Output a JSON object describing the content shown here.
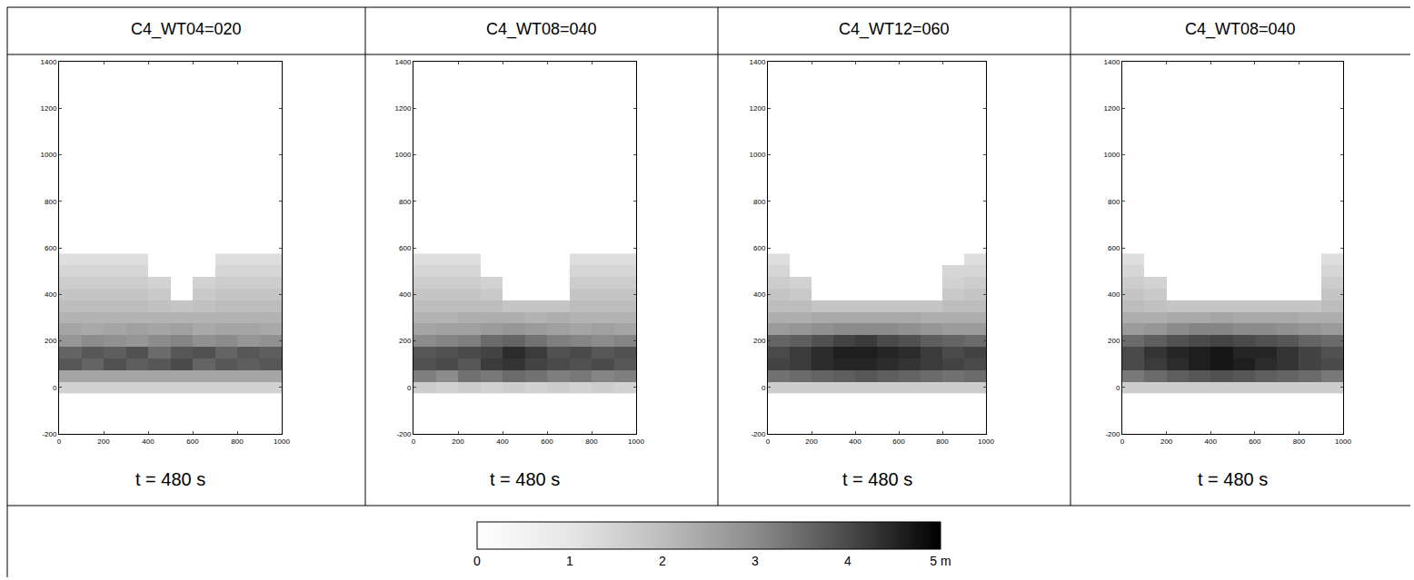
{
  "chart_data": [
    {
      "type": "heatmap",
      "title": "C4_WT04=020",
      "annotations": [
        "t = 480 s"
      ],
      "x": [
        50,
        150,
        250,
        350,
        450,
        550,
        650,
        750,
        850,
        950
      ],
      "y": [
        0,
        50,
        100,
        150,
        200,
        250,
        300,
        350,
        400,
        450,
        500,
        550
      ],
      "z": [
        [
          1.5,
          1.5,
          1.5,
          1.5,
          1.5,
          1.5,
          1.5,
          1.5,
          1.5,
          1.5
        ],
        [
          2.5,
          2.5,
          2.5,
          2.5,
          2.5,
          2.5,
          2.5,
          2.5,
          2.5,
          2.5
        ],
        [
          3.8,
          3.6,
          3.9,
          3.7,
          3.8,
          4.0,
          3.6,
          3.8,
          3.7,
          3.8
        ],
        [
          3.6,
          3.8,
          3.7,
          3.9,
          3.5,
          3.8,
          3.9,
          3.6,
          3.8,
          3.7
        ],
        [
          2.8,
          3.0,
          2.9,
          2.8,
          3.0,
          3.1,
          2.9,
          3.0,
          2.8,
          2.9
        ],
        [
          2.5,
          2.4,
          2.5,
          2.6,
          2.5,
          2.6,
          2.4,
          2.5,
          2.5,
          2.4
        ],
        [
          2.2,
          2.2,
          2.2,
          2.2,
          2.2,
          2.2,
          2.2,
          2.2,
          2.2,
          2.2
        ],
        [
          2.0,
          2.0,
          2.0,
          2.0,
          1.9,
          1.8,
          1.9,
          2.0,
          2.0,
          2.0
        ],
        [
          1.8,
          1.8,
          1.8,
          1.8,
          1.7,
          0,
          1.7,
          1.8,
          1.8,
          1.8
        ],
        [
          1.6,
          1.6,
          1.6,
          1.6,
          1.5,
          0,
          1.5,
          1.6,
          1.6,
          1.6
        ],
        [
          1.4,
          1.4,
          1.4,
          1.4,
          0,
          0,
          0,
          1.4,
          1.4,
          1.4
        ],
        [
          1.2,
          1.2,
          1.2,
          1.2,
          0,
          0,
          0,
          1.2,
          1.2,
          1.2
        ]
      ],
      "xlim": [
        0,
        1000
      ],
      "xticks": [
        0,
        200,
        400,
        600,
        800,
        1000
      ],
      "ylim": [
        -200,
        1400
      ],
      "yticks": [
        -200,
        0,
        200,
        400,
        600,
        800,
        1000,
        1200,
        1400
      ]
    },
    {
      "type": "heatmap",
      "title": "C4_WT08=040",
      "annotations": [
        "t = 480 s"
      ],
      "x": [
        50,
        150,
        250,
        350,
        450,
        550,
        650,
        750,
        850,
        950
      ],
      "y": [
        0,
        50,
        100,
        150,
        200,
        250,
        300,
        350,
        400,
        450,
        500,
        550
      ],
      "z": [
        [
          1.6,
          1.5,
          1.6,
          1.5,
          1.6,
          1.5,
          1.6,
          1.5,
          1.6,
          1.5
        ],
        [
          3.2,
          3.0,
          3.4,
          3.3,
          3.5,
          3.4,
          3.2,
          3.3,
          3.1,
          3.2
        ],
        [
          3.9,
          4.0,
          3.8,
          4.2,
          4.3,
          4.1,
          4.0,
          3.9,
          4.0,
          3.8
        ],
        [
          3.8,
          3.9,
          4.0,
          4.1,
          4.4,
          4.2,
          3.9,
          4.0,
          3.8,
          3.9
        ],
        [
          3.0,
          3.1,
          3.2,
          3.5,
          3.6,
          3.4,
          3.2,
          3.1,
          3.0,
          3.1
        ],
        [
          2.5,
          2.6,
          2.6,
          2.7,
          2.8,
          2.7,
          2.6,
          2.5,
          2.6,
          2.5
        ],
        [
          2.2,
          2.2,
          2.3,
          2.3,
          2.3,
          2.2,
          2.3,
          2.2,
          2.2,
          2.2
        ],
        [
          2.0,
          2.0,
          2.0,
          2.0,
          1.8,
          1.8,
          1.8,
          2.0,
          2.0,
          2.0
        ],
        [
          1.8,
          1.8,
          1.8,
          1.7,
          0,
          0,
          0,
          1.8,
          1.8,
          1.8
        ],
        [
          1.6,
          1.6,
          1.6,
          1.5,
          0,
          0,
          0,
          1.6,
          1.6,
          1.6
        ],
        [
          1.4,
          1.4,
          1.4,
          0,
          0,
          0,
          0,
          1.4,
          1.4,
          1.4
        ],
        [
          1.2,
          1.2,
          1.2,
          0,
          0,
          0,
          0,
          1.2,
          1.2,
          1.2
        ]
      ],
      "xlim": [
        0,
        1000
      ],
      "xticks": [
        0,
        200,
        400,
        600,
        800,
        1000
      ],
      "ylim": [
        -200,
        1400
      ],
      "yticks": [
        -200,
        0,
        200,
        400,
        600,
        800,
        1000,
        1200,
        1400
      ]
    },
    {
      "type": "heatmap",
      "title": "C4_WT12=060",
      "annotations": [
        "t = 480 s"
      ],
      "x": [
        50,
        150,
        250,
        350,
        450,
        550,
        650,
        750,
        850,
        950
      ],
      "y": [
        0,
        50,
        100,
        150,
        200,
        250,
        300,
        350,
        400,
        450,
        500,
        550
      ],
      "z": [
        [
          1.6,
          1.6,
          1.6,
          1.6,
          1.6,
          1.6,
          1.6,
          1.6,
          1.6,
          1.6
        ],
        [
          3.4,
          3.5,
          3.6,
          3.7,
          3.8,
          3.7,
          3.6,
          3.5,
          3.4,
          3.5
        ],
        [
          4.1,
          4.2,
          4.4,
          4.5,
          4.5,
          4.4,
          4.3,
          4.2,
          4.1,
          4.0
        ],
        [
          4.0,
          4.2,
          4.4,
          4.6,
          4.6,
          4.5,
          4.4,
          4.2,
          4.0,
          4.1
        ],
        [
          3.6,
          3.7,
          3.9,
          4.1,
          4.2,
          4.0,
          3.9,
          3.7,
          3.6,
          3.5
        ],
        [
          2.7,
          2.8,
          2.9,
          3.0,
          3.0,
          3.0,
          2.9,
          2.8,
          2.7,
          2.7
        ],
        [
          2.3,
          2.3,
          2.4,
          2.4,
          2.4,
          2.4,
          2.4,
          2.3,
          2.3,
          2.3
        ],
        [
          2.0,
          2.0,
          1.8,
          1.8,
          1.8,
          1.8,
          1.8,
          1.8,
          2.0,
          2.0
        ],
        [
          1.8,
          1.7,
          0,
          0,
          0,
          0,
          0,
          0,
          1.7,
          1.8
        ],
        [
          1.6,
          1.5,
          0,
          0,
          0,
          0,
          0,
          0,
          1.5,
          1.6
        ],
        [
          1.4,
          0,
          0,
          0,
          0,
          0,
          0,
          0,
          1.4,
          1.4
        ],
        [
          1.2,
          0,
          0,
          0,
          0,
          0,
          0,
          0,
          0,
          1.2
        ]
      ],
      "xlim": [
        0,
        1000
      ],
      "xticks": [
        0,
        200,
        400,
        600,
        800,
        1000
      ],
      "ylim": [
        -200,
        1400
      ],
      "yticks": [
        -200,
        0,
        200,
        400,
        600,
        800,
        1000,
        1200,
        1400
      ]
    },
    {
      "type": "heatmap",
      "title": "C4_WT08=040",
      "annotations": [
        "t = 480 s"
      ],
      "x": [
        50,
        150,
        250,
        350,
        450,
        550,
        650,
        750,
        850,
        950
      ],
      "y": [
        0,
        50,
        100,
        150,
        200,
        250,
        300,
        350,
        400,
        450,
        500,
        550
      ],
      "z": [
        [
          1.6,
          1.6,
          1.6,
          1.6,
          1.6,
          1.6,
          1.6,
          1.6,
          1.6,
          1.6
        ],
        [
          3.3,
          3.5,
          3.7,
          3.8,
          3.9,
          3.8,
          3.7,
          3.6,
          3.5,
          3.3
        ],
        [
          4.0,
          4.2,
          4.4,
          4.6,
          4.7,
          4.6,
          4.4,
          4.3,
          4.1,
          4.0
        ],
        [
          4.0,
          4.3,
          4.5,
          4.6,
          4.7,
          4.5,
          4.5,
          4.3,
          4.1,
          3.9
        ],
        [
          3.5,
          3.7,
          3.9,
          4.0,
          4.1,
          4.0,
          3.9,
          3.8,
          3.6,
          3.5
        ],
        [
          2.7,
          2.8,
          3.0,
          3.1,
          3.1,
          3.0,
          3.0,
          2.9,
          2.8,
          2.7
        ],
        [
          2.3,
          2.3,
          2.4,
          2.4,
          2.5,
          2.4,
          2.4,
          2.4,
          2.3,
          2.3
        ],
        [
          2.0,
          1.9,
          1.8,
          1.8,
          1.8,
          1.8,
          1.8,
          1.8,
          1.8,
          2.0
        ],
        [
          1.8,
          1.7,
          0,
          0,
          0,
          0,
          0,
          0,
          0,
          1.8
        ],
        [
          1.6,
          1.5,
          0,
          0,
          0,
          0,
          0,
          0,
          0,
          1.6
        ],
        [
          1.4,
          0,
          0,
          0,
          0,
          0,
          0,
          0,
          0,
          1.4
        ],
        [
          1.2,
          0,
          0,
          0,
          0,
          0,
          0,
          0,
          0,
          1.2
        ]
      ],
      "xlim": [
        0,
        1000
      ],
      "xticks": [
        0,
        200,
        400,
        600,
        800,
        1000
      ],
      "ylim": [
        -200,
        1400
      ],
      "yticks": [
        -200,
        0,
        200,
        400,
        600,
        800,
        1000,
        1200,
        1400
      ]
    }
  ],
  "colorbar": {
    "range": [
      0,
      5
    ],
    "ticks": [
      0,
      1,
      2,
      3,
      4,
      {
        "value": 5,
        "label": "5 m"
      }
    ]
  }
}
